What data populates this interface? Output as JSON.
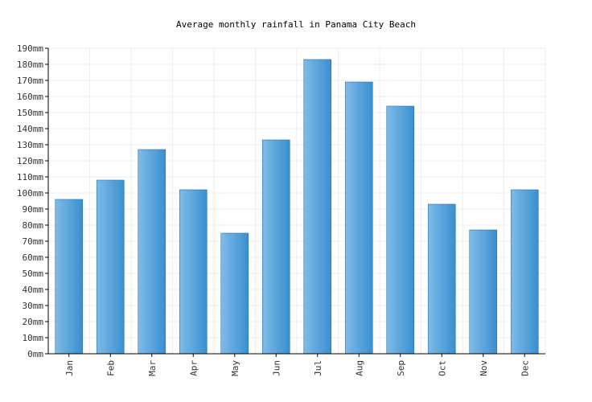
{
  "chart_data": {
    "type": "bar",
    "title": "Average monthly rainfall in Panama City Beach",
    "xlabel": "",
    "ylabel": "",
    "unit": "mm",
    "categories": [
      "Jan",
      "Feb",
      "Mar",
      "Apr",
      "May",
      "Jun",
      "Jul",
      "Aug",
      "Sep",
      "Oct",
      "Nov",
      "Dec"
    ],
    "values": [
      96,
      108,
      127,
      102,
      75,
      133,
      183,
      169,
      154,
      93,
      77,
      102
    ],
    "ylim": [
      0,
      190
    ],
    "ytick_step": 10,
    "grid": true,
    "legend": "none",
    "colors": {
      "bar_light": "#7fbbe8",
      "bar_dark": "#3a8fd0",
      "bar_stroke": "#2a6fa8",
      "grid": "#eeeeee",
      "axis": "#000000"
    }
  }
}
